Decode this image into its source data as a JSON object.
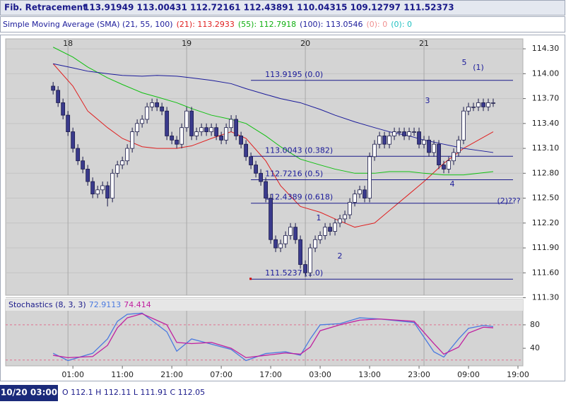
{
  "chart_data": {
    "type": "candlestick",
    "header": {
      "title": "Fib. Retracement",
      "values": "113.91949 113.00431 112.72161 112.43891 110.04315 109.12797 111.52373"
    },
    "sma_legend": [
      {
        "text": "Simple Moving Average (SMA) (21, 55, 100)",
        "color": "#1a1a9a"
      },
      {
        "text": "(21): 113.2933",
        "color": "#e02020"
      },
      {
        "text": "(55): 112.7918",
        "color": "#10b010"
      },
      {
        "text": "(100): 113.0546",
        "color": "#1a1a9a"
      },
      {
        "text": "(0): 0",
        "color": "#f09090"
      },
      {
        "text": "(0): 0",
        "color": "#20c0c0"
      }
    ],
    "xlim": [
      -12.6,
      92
    ],
    "xticks": [
      {
        "value": 1,
        "label": "01:00"
      },
      {
        "value": 11,
        "label": "11:00"
      },
      {
        "value": 21,
        "label": "21:00"
      },
      {
        "value": 31,
        "label": "07:00"
      },
      {
        "value": 41,
        "label": "17:00"
      },
      {
        "value": 51,
        "label": "03:00"
      },
      {
        "value": 61,
        "label": "13:00"
      },
      {
        "value": 71,
        "label": "23:00"
      },
      {
        "value": 81,
        "label": "09:00"
      },
      {
        "value": 91,
        "label": "19:00"
      }
    ],
    "day_ticks": [
      {
        "value": 0,
        "label": "18"
      },
      {
        "value": 24,
        "label": "19"
      },
      {
        "value": 48,
        "label": "20"
      },
      {
        "value": 72,
        "label": "21"
      }
    ],
    "ylim": [
      111.33,
      114.42
    ],
    "yticks": [
      {
        "value": 114.3,
        "label": "114.30"
      },
      {
        "value": 114,
        "label": "114.00"
      },
      {
        "value": 113.7,
        "label": "113.70"
      },
      {
        "value": 113.4,
        "label": "113.40"
      },
      {
        "value": 113.1,
        "label": "113.10"
      },
      {
        "value": 112.8,
        "label": "112.80"
      },
      {
        "value": 112.5,
        "label": "112.50"
      },
      {
        "value": 112.2,
        "label": "112.20"
      },
      {
        "value": 111.9,
        "label": "111.90"
      },
      {
        "value": 111.6,
        "label": "111.60"
      },
      {
        "value": 111.3,
        "label": "111.30"
      }
    ],
    "grid": true,
    "up_color": "#ffffff",
    "down_color": "#3a3a8c",
    "x": [
      -3,
      -2,
      -1,
      0,
      1,
      2,
      3,
      4,
      5,
      6,
      7,
      8,
      9,
      10,
      11,
      12,
      13,
      14,
      15,
      16,
      17,
      18,
      19,
      20,
      21,
      22,
      23,
      24,
      25,
      26,
      27,
      28,
      29,
      30,
      31,
      32,
      33,
      34,
      35,
      36,
      37,
      38,
      39,
      40,
      41,
      42,
      43,
      44,
      45,
      46,
      47,
      48,
      49,
      50,
      51,
      52,
      53,
      54,
      55,
      56,
      57,
      58,
      59,
      60,
      61,
      62,
      63,
      64,
      65,
      66,
      67,
      68,
      69,
      70,
      71,
      72,
      73,
      74,
      75,
      76,
      77,
      78,
      79,
      80,
      81,
      82,
      83,
      84,
      85,
      86
    ],
    "ohlc": [
      [
        113.85,
        113.9,
        113.75,
        113.8
      ],
      [
        113.8,
        113.85,
        113.6,
        113.65
      ],
      [
        113.65,
        113.7,
        113.45,
        113.5
      ],
      [
        113.5,
        113.55,
        113.25,
        113.3
      ],
      [
        113.3,
        113.35,
        113.05,
        113.1
      ],
      [
        113.1,
        113.15,
        112.9,
        112.95
      ],
      [
        112.95,
        113,
        112.8,
        112.85
      ],
      [
        112.85,
        112.9,
        112.65,
        112.7
      ],
      [
        112.7,
        112.75,
        112.5,
        112.55
      ],
      [
        112.55,
        112.65,
        112.5,
        112.6
      ],
      [
        112.6,
        112.7,
        112.55,
        112.65
      ],
      [
        112.65,
        112.7,
        112.4,
        112.5
      ],
      [
        112.5,
        112.85,
        112.45,
        112.8
      ],
      [
        112.8,
        112.95,
        112.75,
        112.9
      ],
      [
        112.9,
        113,
        112.85,
        112.95
      ],
      [
        112.95,
        113.15,
        112.9,
        113.1
      ],
      [
        113.1,
        113.35,
        113.05,
        113.3
      ],
      [
        113.3,
        113.45,
        113.25,
        113.4
      ],
      [
        113.4,
        113.5,
        113.35,
        113.45
      ],
      [
        113.45,
        113.65,
        113.4,
        113.6
      ],
      [
        113.6,
        113.7,
        113.55,
        113.65
      ],
      [
        113.65,
        113.7,
        113.55,
        113.6
      ],
      [
        113.6,
        113.65,
        113.5,
        113.55
      ],
      [
        113.55,
        113.6,
        113.2,
        113.25
      ],
      [
        113.25,
        113.3,
        113.15,
        113.2
      ],
      [
        113.2,
        113.25,
        113.1,
        113.15
      ],
      [
        113.15,
        113.4,
        113.1,
        113.35
      ],
      [
        113.35,
        113.6,
        113.3,
        113.55
      ],
      [
        113.55,
        113.6,
        113.2,
        113.25
      ],
      [
        113.25,
        113.35,
        113.2,
        113.3
      ],
      [
        113.3,
        113.4,
        113.25,
        113.35
      ],
      [
        113.35,
        113.4,
        113.25,
        113.3
      ],
      [
        113.3,
        113.4,
        113.25,
        113.35
      ],
      [
        113.35,
        113.4,
        113.2,
        113.25
      ],
      [
        113.25,
        113.3,
        113.15,
        113.2
      ],
      [
        113.2,
        113.4,
        113.15,
        113.35
      ],
      [
        113.35,
        113.5,
        113.3,
        113.45
      ],
      [
        113.45,
        113.5,
        113.2,
        113.25
      ],
      [
        113.25,
        113.3,
        113.1,
        113.15
      ],
      [
        113.15,
        113.2,
        112.95,
        113
      ],
      [
        113,
        113.05,
        112.85,
        112.9
      ],
      [
        112.9,
        112.95,
        112.75,
        112.8
      ],
      [
        112.8,
        112.85,
        112.65,
        112.7
      ],
      [
        112.7,
        112.75,
        112.45,
        112.5
      ],
      [
        112.5,
        112.55,
        111.95,
        112
      ],
      [
        112,
        112.05,
        111.85,
        111.9
      ],
      [
        111.9,
        112,
        111.85,
        111.95
      ],
      [
        111.95,
        112.1,
        111.9,
        112.05
      ],
      [
        112.05,
        112.2,
        112,
        112.15
      ],
      [
        112.15,
        112.2,
        111.95,
        112
      ],
      [
        112,
        112.05,
        111.65,
        111.7
      ],
      [
        111.7,
        111.75,
        111.55,
        111.6
      ],
      [
        111.6,
        111.95,
        111.55,
        111.9
      ],
      [
        111.9,
        112.05,
        111.85,
        112
      ],
      [
        112,
        112.1,
        111.95,
        112.05
      ],
      [
        112.05,
        112.2,
        112,
        112.15
      ],
      [
        112.15,
        112.2,
        112.05,
        112.1
      ],
      [
        112.1,
        112.25,
        112.05,
        112.2
      ],
      [
        112.2,
        112.3,
        112.15,
        112.25
      ],
      [
        112.25,
        112.35,
        112.2,
        112.3
      ],
      [
        112.3,
        112.5,
        112.25,
        112.45
      ],
      [
        112.45,
        112.6,
        112.4,
        112.55
      ],
      [
        112.55,
        112.65,
        112.5,
        112.6
      ],
      [
        112.6,
        112.65,
        112.45,
        112.5
      ],
      [
        112.5,
        113.05,
        112.45,
        113
      ],
      [
        113,
        113.2,
        112.95,
        113.15
      ],
      [
        113.15,
        113.3,
        113.1,
        113.25
      ],
      [
        113.25,
        113.3,
        113.1,
        113.15
      ],
      [
        113.15,
        113.3,
        113.1,
        113.25
      ],
      [
        113.25,
        113.35,
        113.2,
        113.3
      ],
      [
        113.3,
        113.35,
        113.25,
        113.3
      ],
      [
        113.3,
        113.35,
        113.2,
        113.25
      ],
      [
        113.25,
        113.35,
        113.2,
        113.3
      ],
      [
        113.3,
        113.35,
        113.25,
        113.3
      ],
      [
        113.3,
        113.35,
        113.1,
        113.15
      ],
      [
        113.15,
        113.25,
        113.1,
        113.2
      ],
      [
        113.2,
        113.25,
        113,
        113.05
      ],
      [
        113.05,
        113.2,
        113,
        113.15
      ],
      [
        113.15,
        113.2,
        112.85,
        112.9
      ],
      [
        112.9,
        112.95,
        112.8,
        112.85
      ],
      [
        112.85,
        113,
        112.8,
        112.95
      ],
      [
        112.95,
        113.1,
        112.9,
        113.05
      ],
      [
        113.05,
        113.25,
        113,
        113.2
      ],
      [
        113.2,
        113.6,
        113.15,
        113.55
      ],
      [
        113.55,
        113.65,
        113.5,
        113.6
      ],
      [
        113.6,
        113.65,
        113.55,
        113.6
      ],
      [
        113.6,
        113.7,
        113.55,
        113.65
      ],
      [
        113.65,
        113.7,
        113.55,
        113.6
      ],
      [
        113.6,
        113.7,
        113.55,
        113.65
      ],
      [
        113.65,
        113.7,
        113.6,
        113.65
      ]
    ],
    "sma_x": [
      -3,
      1,
      4,
      8,
      11,
      15,
      18,
      22,
      25,
      29,
      33,
      36,
      40,
      43,
      47,
      51,
      54,
      58,
      62,
      65,
      69,
      72,
      76,
      80,
      86
    ],
    "sma_series": [
      {
        "color": "#e02020",
        "values": [
          114.12,
          113.85,
          113.55,
          113.35,
          113.22,
          113.12,
          113.1,
          113.1,
          113.13,
          113.22,
          113.3,
          113.22,
          112.95,
          112.65,
          112.4,
          112.33,
          112.25,
          112.15,
          112.2,
          112.35,
          112.55,
          112.7,
          112.92,
          113.1,
          113.3
        ]
      },
      {
        "color": "#10c010",
        "values": [
          114.32,
          114.2,
          114.08,
          113.95,
          113.87,
          113.77,
          113.72,
          113.65,
          113.58,
          113.5,
          113.45,
          113.4,
          113.25,
          113.12,
          112.97,
          112.9,
          112.85,
          112.8,
          112.8,
          112.82,
          112.82,
          112.8,
          112.78,
          112.78,
          112.82
        ]
      },
      {
        "color": "#1a1a9a",
        "values": [
          114.12,
          114.07,
          114.03,
          114,
          113.98,
          113.97,
          113.98,
          113.97,
          113.95,
          113.92,
          113.88,
          113.82,
          113.75,
          113.7,
          113.65,
          113.57,
          113.5,
          113.42,
          113.35,
          113.3,
          113.25,
          113.2,
          113.15,
          113.1,
          113.05
        ]
      }
    ],
    "fib_x": [
      37,
      90
    ],
    "fib_levels": [
      {
        "value": 113.9195,
        "label": "113.9195 (0.0)"
      },
      {
        "value": 113.0043,
        "label": "113.0043 (0.382)"
      },
      {
        "value": 112.7216,
        "label": "112.7216 (0.5)"
      },
      {
        "value": 112.4389,
        "label": "112.4389 (0.618)"
      },
      {
        "value": 111.5237,
        "label": "111.5237 (1.0)"
      }
    ],
    "annotations": [
      "1",
      "2",
      "3",
      "4",
      "5",
      "(1)",
      "(2)???"
    ],
    "stoch": {
      "title": "Stochastics (8, 3, 3)",
      "k_last": 72.9113,
      "d_last": 74.414,
      "ylim": [
        10,
        104
      ],
      "yticks": [
        80,
        40
      ],
      "levels": [
        80,
        20
      ],
      "x": [
        -3,
        0,
        5,
        8,
        10,
        12,
        15,
        20,
        22,
        25,
        29,
        33,
        36,
        40,
        44,
        47,
        49,
        51,
        55,
        59,
        63,
        70,
        74,
        76,
        79,
        81,
        84,
        86
      ],
      "series": [
        {
          "color": "#4a7ae0",
          "values": [
            31.5,
            19,
            31.5,
            56,
            86,
            98,
            100,
            68,
            35,
            56,
            47,
            38,
            19,
            31,
            34,
            28,
            56,
            80,
            82,
            92,
            90,
            84,
            34,
            25,
            56,
            74,
            79,
            77
          ]
        },
        {
          "color": "#c020a0",
          "values": [
            28,
            24,
            26,
            45,
            75,
            92,
            99,
            80,
            50,
            48,
            50,
            40,
            24,
            28,
            32,
            30,
            42,
            70,
            80,
            88,
            90,
            86,
            48,
            30,
            42,
            66,
            76,
            75
          ]
        }
      ]
    },
    "status": {
      "date": "10/20 03:00",
      "ohlc": "O 112.1 H 112.11 L 111.91 C 112.05"
    }
  }
}
